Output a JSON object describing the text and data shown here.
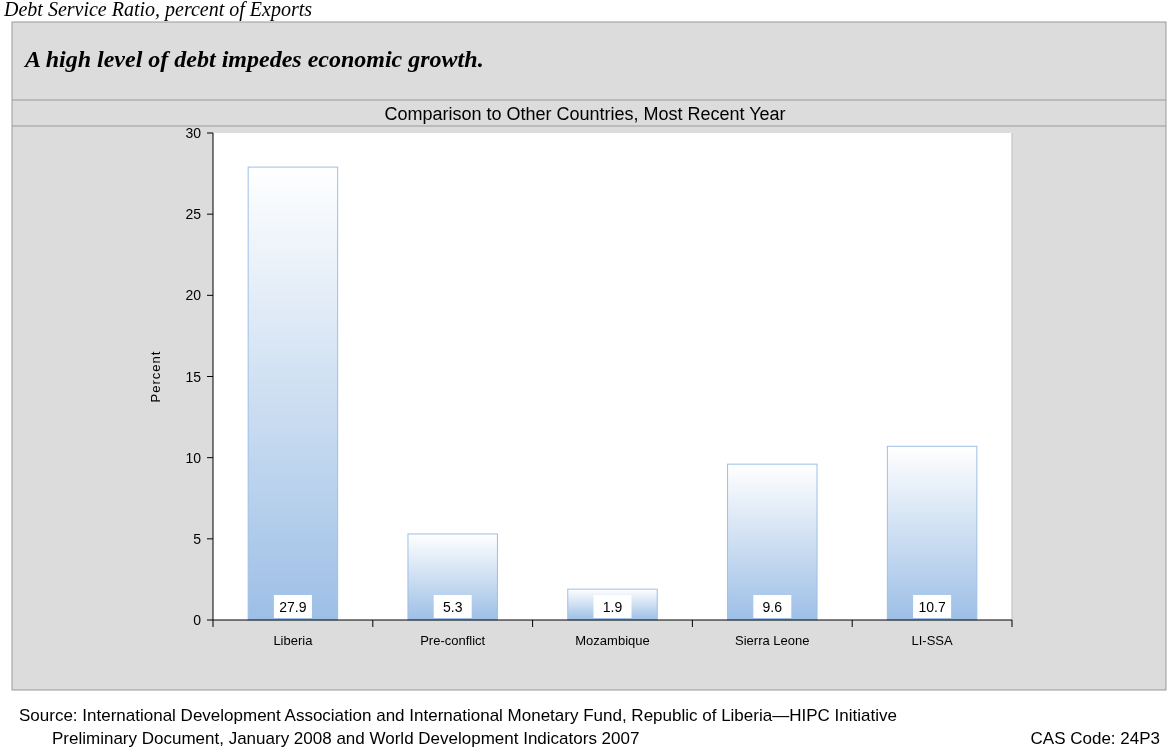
{
  "chart_data": {
    "type": "bar",
    "title": "Debt Service Ratio, percent of Exports",
    "subtitle": "A high level of debt impedes economic growth.",
    "annotations": [
      "Comparison to Other Countries, Most Recent Year",
      "Source: International Development Association and International Monetary Fund, Republic of Liberia—HIPC Initiative Preliminary Document, January 2008 and World Development Indicators 2007",
      "CAS Code: 24P3"
    ],
    "ylabel": "Percent",
    "categories": [
      "Liberia",
      "Pre-conflict",
      "Mozambique",
      "Sierra Leone",
      "LI-SSA"
    ],
    "values": [
      27.9,
      5.3,
      1.9,
      9.6,
      10.7
    ],
    "color": "#9dbfe6",
    "data_labels": true,
    "ylim": [
      0,
      30
    ],
    "yticks": [
      0,
      5,
      10,
      15,
      20,
      25,
      30
    ],
    "grid": false
  }
}
